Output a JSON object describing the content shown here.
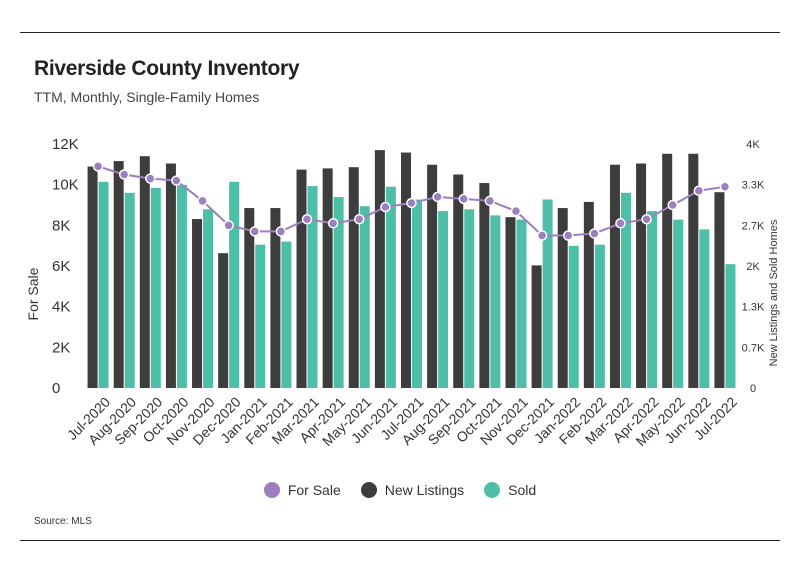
{
  "title": "Riverside County Inventory",
  "subtitle": "TTM, Monthly, Single-Family Homes",
  "source": "Source:  MLS",
  "colors": {
    "for_sale": "#9b7fbe",
    "new_listings": "#3d3d3d",
    "sold": "#4dbfa6"
  },
  "chart_data": {
    "type": "bar",
    "categories": [
      "Jul-2020",
      "Aug-2020",
      "Sep-2020",
      "Oct-2020",
      "Nov-2020",
      "Dec-2020",
      "Jan-2021",
      "Feb-2021",
      "Mar-2021",
      "Apr-2021",
      "May-2021",
      "Jun-2021",
      "Jul-2021",
      "Aug-2021",
      "Sep-2021",
      "Oct-2021",
      "Nov-2021",
      "Dec-2021",
      "Jan-2022",
      "Feb-2022",
      "Mar-2022",
      "Apr-2022",
      "May-2022",
      "Jun-2022",
      "Jul-2022"
    ],
    "series": [
      {
        "name": "New Listings",
        "type": "bar",
        "axis": "right",
        "values": [
          3.63,
          3.72,
          3.8,
          3.68,
          2.77,
          2.21,
          2.95,
          2.95,
          3.58,
          3.6,
          3.62,
          3.9,
          3.86,
          3.66,
          3.5,
          3.36,
          2.8,
          2.01,
          2.95,
          3.05,
          3.66,
          3.68,
          3.84,
          3.84,
          3.21
        ]
      },
      {
        "name": "Sold",
        "type": "bar",
        "axis": "right",
        "values": [
          3.38,
          3.2,
          3.28,
          3.33,
          2.93,
          3.38,
          2.35,
          2.4,
          3.31,
          3.13,
          2.98,
          3.3,
          3.09,
          2.9,
          2.93,
          2.83,
          2.76,
          3.09,
          2.33,
          2.35,
          3.2,
          2.9,
          2.76,
          2.6,
          2.03
        ]
      },
      {
        "name": "For Sale",
        "type": "line",
        "axis": "left",
        "values": [
          10900,
          10500,
          10300,
          10200,
          9200,
          8000,
          7700,
          7700,
          8300,
          8100,
          8300,
          8900,
          9100,
          9400,
          9300,
          9200,
          8700,
          7500,
          7500,
          7600,
          8100,
          8300,
          9000,
          9700,
          9900
        ]
      }
    ],
    "left_axis": {
      "label": "For Sale",
      "ticks": [
        "0",
        "2K",
        "4K",
        "6K",
        "8K",
        "10K",
        "12K"
      ],
      "ylim": [
        0,
        12000
      ]
    },
    "right_axis": {
      "label": "New Listings and Sold Homes",
      "ticks": [
        "0",
        "0.7K",
        "1.3K",
        "2K",
        "2.7K",
        "3.3K",
        "4K"
      ],
      "ylim": [
        0,
        4
      ]
    },
    "legend": [
      "For Sale",
      "New Listings",
      "Sold"
    ],
    "legend_position": "bottom"
  }
}
